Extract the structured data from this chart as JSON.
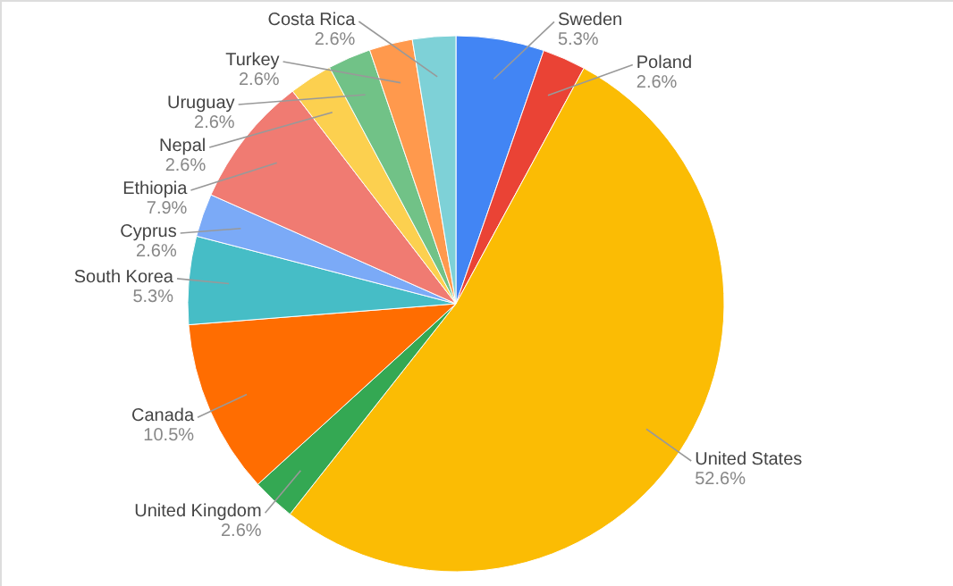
{
  "chart_data": {
    "type": "pie",
    "categories": [
      "Sweden",
      "Poland",
      "United States",
      "United Kingdom",
      "Canada",
      "South Korea",
      "Cyprus",
      "Ethiopia",
      "Nepal",
      "Uruguay",
      "Turkey",
      "Costa Rica"
    ],
    "values": [
      5.3,
      2.6,
      52.6,
      2.6,
      10.5,
      5.3,
      2.6,
      7.9,
      2.6,
      2.6,
      2.6,
      2.6
    ],
    "value_labels": [
      "5.3%",
      "2.6%",
      "52.6%",
      "2.6%",
      "10.5%",
      "5.3%",
      "2.6%",
      "7.9%",
      "2.6%",
      "2.6%",
      "2.6%",
      "2.6%"
    ],
    "colors": [
      "#4285f4",
      "#ea4335",
      "#fbbc04",
      "#34a853",
      "#ff6d01",
      "#46bdc6",
      "#7baaf7",
      "#f07b72",
      "#fcd04f",
      "#71c287",
      "#ff994d",
      "#7ed1d7"
    ]
  }
}
